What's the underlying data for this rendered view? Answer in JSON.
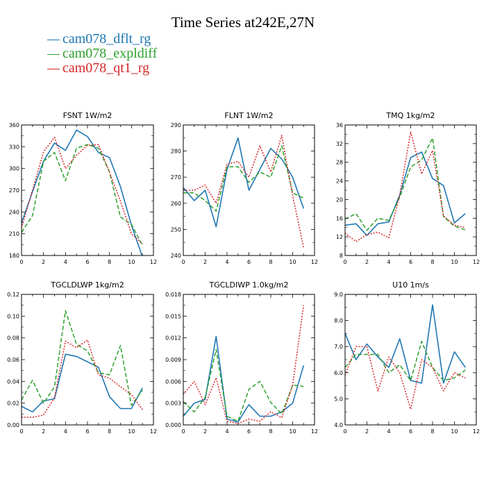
{
  "figure_title": "Time Series at242E,27N",
  "colors": {
    "cam078_dflt_rg": "#1f77b4",
    "cam078_expldiff": "#2ca02c",
    "cam078_qt1_rg": "#d62728"
  },
  "legend": [
    {
      "label": "cam078_dflt_rg",
      "color": "#1f77b4"
    },
    {
      "label": "cam078_expldiff",
      "color": "#2ca02c"
    },
    {
      "label": "cam078_qt1_rg",
      "color": "#d62728"
    }
  ],
  "chart_data": [
    {
      "type": "line",
      "title": "FSNT   1W/m2",
      "xlim": [
        0,
        12
      ],
      "ylim": [
        180,
        360
      ],
      "xticks": [
        0,
        1,
        2,
        3,
        4,
        5,
        6,
        7,
        8,
        9,
        10,
        11,
        12
      ],
      "yticks": [
        180,
        210,
        240,
        270,
        300,
        330,
        360
      ],
      "ytick_labels": [
        "180",
        "210",
        "240",
        "270",
        "300",
        "330",
        "360"
      ],
      "x": [
        0,
        1,
        2,
        3,
        4,
        5,
        6,
        7,
        8,
        9,
        10,
        11
      ],
      "series": [
        {
          "name": "cam078_dflt_rg",
          "values": [
            225,
            268,
            310,
            335,
            325,
            353,
            344,
            322,
            315,
            275,
            222,
            178
          ]
        },
        {
          "name": "cam078_expldiff",
          "values": [
            212,
            235,
            310,
            322,
            283,
            328,
            333,
            328,
            295,
            233,
            223,
            194
          ]
        },
        {
          "name": "cam078_qt1_rg",
          "values": [
            218,
            270,
            323,
            343,
            300,
            318,
            332,
            333,
            295,
            255,
            210,
            196
          ]
        }
      ]
    },
    {
      "type": "line",
      "title": "FLNT   1W/m2",
      "xlim": [
        0,
        12
      ],
      "ylim": [
        240,
        290
      ],
      "xticks": [
        0,
        1,
        2,
        3,
        4,
        5,
        6,
        7,
        8,
        9,
        10,
        11,
        12
      ],
      "yticks": [
        240,
        250,
        260,
        270,
        280,
        290
      ],
      "ytick_labels": [
        "240",
        "250",
        "260",
        "270",
        "280",
        "290"
      ],
      "x": [
        0,
        1,
        2,
        3,
        4,
        5,
        6,
        7,
        8,
        9,
        10,
        11
      ],
      "series": [
        {
          "name": "cam078_dflt_rg",
          "values": [
            266,
            261,
            265,
            251,
            273,
            285,
            265,
            273,
            281,
            277,
            270,
            258
          ]
        },
        {
          "name": "cam078_expldiff",
          "values": [
            264,
            264,
            261,
            257,
            274,
            274,
            268,
            272,
            270,
            282,
            264,
            262
          ]
        },
        {
          "name": "cam078_qt1_rg",
          "values": [
            265,
            265,
            267,
            260,
            275,
            276,
            270,
            282,
            272,
            286,
            263,
            243
          ]
        }
      ]
    },
    {
      "type": "line",
      "title": "TMQ   1kg/m2",
      "xlim": [
        0,
        12
      ],
      "ylim": [
        8,
        36
      ],
      "xticks": [
        0,
        1,
        2,
        3,
        4,
        5,
        6,
        7,
        8,
        9,
        10,
        11,
        12
      ],
      "yticks": [
        8,
        12,
        16,
        20,
        24,
        28,
        32,
        36
      ],
      "ytick_labels": [
        "8",
        "12",
        "16",
        "20",
        "24",
        "28",
        "32",
        "36"
      ],
      "x": [
        0,
        1,
        2,
        3,
        4,
        5,
        6,
        7,
        8,
        9,
        10,
        11
      ],
      "series": [
        {
          "name": "cam078_dflt_rg",
          "values": [
            14.5,
            14.8,
            12.3,
            14.8,
            15.2,
            21,
            29,
            30.2,
            24.5,
            23,
            15,
            17
          ]
        },
        {
          "name": "cam078_expldiff",
          "values": [
            15.8,
            17,
            13.4,
            16,
            15.5,
            20.5,
            27,
            28.5,
            33.2,
            16.3,
            14.3,
            13.5
          ]
        },
        {
          "name": "cam078_qt1_rg",
          "values": [
            12.8,
            11,
            12.5,
            13,
            11.8,
            21,
            34.5,
            25.5,
            30.5,
            16.5,
            14.5,
            14
          ]
        }
      ]
    },
    {
      "type": "line",
      "title": "TGCLDLWP   1kg/m2",
      "xlim": [
        0,
        12
      ],
      "ylim": [
        0,
        0.12
      ],
      "xticks": [
        0,
        1,
        2,
        3,
        4,
        5,
        6,
        7,
        8,
        9,
        10,
        11,
        12
      ],
      "yticks": [
        0,
        0.02,
        0.04,
        0.06,
        0.08,
        0.1,
        0.12
      ],
      "ytick_labels": [
        "0.00",
        "0.02",
        "0.04",
        "0.06",
        "0.08",
        "0.10",
        "0.12"
      ],
      "x": [
        0,
        1,
        2,
        3,
        4,
        5,
        6,
        7,
        8,
        9,
        10,
        11
      ],
      "series": [
        {
          "name": "cam078_dflt_rg",
          "values": [
            0.017,
            0.012,
            0.022,
            0.024,
            0.065,
            0.063,
            0.058,
            0.053,
            0.026,
            0.015,
            0.015,
            0.034
          ]
        },
        {
          "name": "cam078_expldiff",
          "values": [
            0.023,
            0.041,
            0.02,
            0.035,
            0.105,
            0.074,
            0.068,
            0.048,
            0.046,
            0.073,
            0.018,
            0.032
          ]
        },
        {
          "name": "cam078_qt1_rg",
          "values": [
            0.007,
            0.007,
            0.009,
            0.025,
            0.077,
            0.071,
            0.078,
            0.046,
            0.043,
            0.035,
            0.028,
            0.014
          ]
        }
      ]
    },
    {
      "type": "line",
      "title": "TGCLDIWP   1.0kg/m2",
      "xlim": [
        0,
        12
      ],
      "ylim": [
        0,
        0.018
      ],
      "xticks": [
        0,
        1,
        2,
        3,
        4,
        5,
        6,
        7,
        8,
        9,
        10,
        11,
        12
      ],
      "yticks": [
        0,
        0.003,
        0.006,
        0.009,
        0.012,
        0.015,
        0.018
      ],
      "ytick_labels": [
        "0.000",
        "0.003",
        "0.006",
        "0.009",
        "0.012",
        "0.015",
        "0.018"
      ],
      "x": [
        0,
        1,
        2,
        3,
        4,
        5,
        6,
        7,
        8,
        9,
        10,
        11
      ],
      "series": [
        {
          "name": "cam078_dflt_rg",
          "values": [
            0.0012,
            0.003,
            0.0035,
            0.0122,
            0.0008,
            0.0004,
            0.0028,
            0.0012,
            0.0012,
            0.0018,
            0.003,
            0.0082
          ]
        },
        {
          "name": "cam078_expldiff",
          "values": [
            0.0032,
            0.0018,
            0.0038,
            0.0104,
            0.0012,
            0.0005,
            0.0049,
            0.006,
            0.0031,
            0.0015,
            0.0055,
            0.0053
          ]
        },
        {
          "name": "cam078_qt1_rg",
          "values": [
            0.0042,
            0.006,
            0.0028,
            0.0065,
            0.0005,
            0.0002,
            0.0008,
            0.0005,
            0.0018,
            0.001,
            0.0055,
            0.0165
          ]
        }
      ]
    },
    {
      "type": "line",
      "title": "U10   1m/s",
      "xlim": [
        0,
        12
      ],
      "ylim": [
        4,
        9
      ],
      "xticks": [
        0,
        1,
        2,
        3,
        4,
        5,
        6,
        7,
        8,
        9,
        10,
        11,
        12
      ],
      "yticks": [
        4,
        5,
        6,
        7,
        8,
        9
      ],
      "ytick_labels": [
        "4.0",
        "5.0",
        "6.0",
        "7.0",
        "8.0",
        "9.0"
      ],
      "x": [
        0,
        1,
        2,
        3,
        4,
        5,
        6,
        7,
        8,
        9,
        10,
        11
      ],
      "series": [
        {
          "name": "cam078_dflt_rg",
          "values": [
            7.5,
            6.5,
            7.1,
            6.6,
            6.2,
            7.3,
            5.7,
            5.6,
            8.6,
            5.6,
            6.8,
            6.2
          ]
        },
        {
          "name": "cam078_expldiff",
          "values": [
            6.2,
            6.7,
            6.7,
            6.7,
            6.0,
            6.3,
            5.7,
            7.2,
            6.2,
            5.7,
            5.8,
            6.1
          ]
        },
        {
          "name": "cam078_qt1_rg",
          "values": [
            5.9,
            7.0,
            7.0,
            5.3,
            6.6,
            6.0,
            4.6,
            6.5,
            6.2,
            5.3,
            6.0,
            5.8
          ]
        }
      ]
    }
  ]
}
